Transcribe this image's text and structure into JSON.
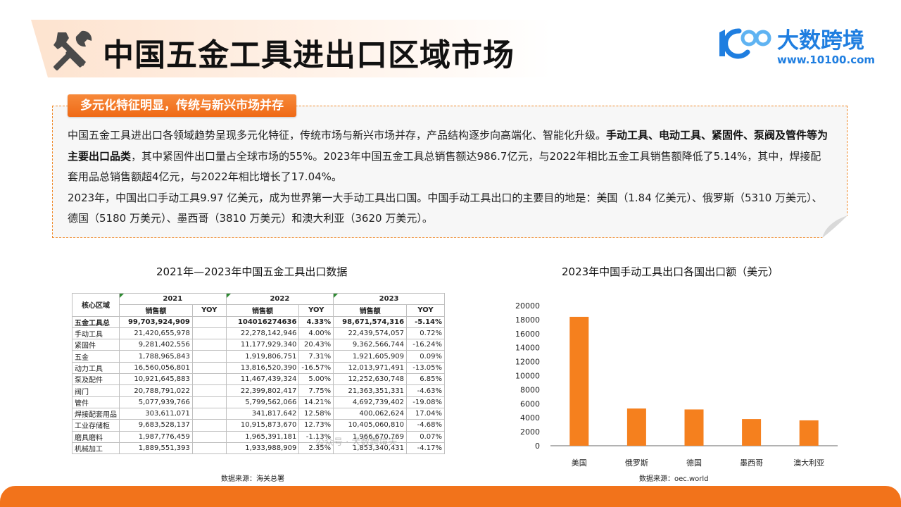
{
  "header": {
    "title": "中国五金工具进出口区域市场",
    "logo_name": "大数跨境",
    "logo_url": "www.10100.com"
  },
  "intro": {
    "tag": "多元化特征明显，传统与新兴市场并存",
    "p1_a": "中国五金工具进出口各领域趋势呈现多元化特征，传统市场与新兴市场并存，产品结构逐步向高端化、智能化升级。",
    "p1_bold": "手动工具、电动工具、紧固件、泵阀及管件等为主要出口品类",
    "p1_b": "，其中紧固件出口量占全球市场的55%。2023年中国五金工具总销售额达986.7亿元，与2022年相比五金工具销售额降低了5.14%，其中，焊接配套用品总销售额超4亿元，与2022年相比增长了17.04%。",
    "p2": "2023年，中国出口手动工具9.97 亿美元，成为世界第一大手动工具出口国。中国手动工具出口的主要目的地是：美国（1.84 亿美元）、俄罗斯（5310 万美元）、德国（5180 万美元）、墨西哥（3810 万美元）和澳大利亚（3620 万美元）。"
  },
  "table": {
    "title": "2021年—2023年中国五金工具出口数据",
    "region_header": "核心区域",
    "years": [
      "2021",
      "2022",
      "2023"
    ],
    "sub_sales": "销售额",
    "sub_yoy": "YOY",
    "rows": [
      {
        "name": "五金工具总",
        "v2021": "99,703,924,909",
        "y2021": "",
        "v2022": "104016274636",
        "y2022": "4.33%",
        "v2023": "98,671,574,316",
        "y2023": "-5.14%"
      },
      {
        "name": "手动工具",
        "v2021": "21,420,655,978",
        "y2021": "",
        "v2022": "22,278,142,946",
        "y2022": "4.00%",
        "v2023": "22,439,574,057",
        "y2023": "0.72%"
      },
      {
        "name": "紧固件",
        "v2021": "9,281,402,556",
        "y2021": "",
        "v2022": "11,177,929,340",
        "y2022": "20.43%",
        "v2023": "9,362,566,744",
        "y2023": "-16.24%"
      },
      {
        "name": "五金",
        "v2021": "1,788,965,843",
        "y2021": "",
        "v2022": "1,919,806,751",
        "y2022": "7.31%",
        "v2023": "1,921,605,909",
        "y2023": "0.09%"
      },
      {
        "name": "动力工具",
        "v2021": "16,560,056,801",
        "y2021": "",
        "v2022": "13,816,520,390",
        "y2022": "-16.57%",
        "v2023": "12,013,971,491",
        "y2023": "-13.05%"
      },
      {
        "name": "泵及配件",
        "v2021": "10,921,645,883",
        "y2021": "",
        "v2022": "11,467,439,324",
        "y2022": "5.00%",
        "v2023": "12,252,630,748",
        "y2023": "6.85%"
      },
      {
        "name": "阀门",
        "v2021": "20,788,791,022",
        "y2021": "",
        "v2022": "22,399,802,417",
        "y2022": "7.75%",
        "v2023": "21,363,351,331",
        "y2023": "-4.63%"
      },
      {
        "name": "管件",
        "v2021": "5,077,939,766",
        "y2021": "",
        "v2022": "5,799,562,066",
        "y2022": "14.21%",
        "v2023": "4,692,739,402",
        "y2023": "-19.08%"
      },
      {
        "name": "焊接配套用品",
        "v2021": "303,611,071",
        "y2021": "",
        "v2022": "341,817,642",
        "y2022": "12.58%",
        "v2023": "400,062,624",
        "y2023": "17.04%"
      },
      {
        "name": "工业存储柜",
        "v2021": "9,683,528,137",
        "y2021": "",
        "v2022": "10,915,873,670",
        "y2022": "12.73%",
        "v2023": "10,405,060,810",
        "y2023": "-4.68%"
      },
      {
        "name": "磨具磨料",
        "v2021": "1,987,776,459",
        "y2021": "",
        "v2022": "1,965,391,181",
        "y2022": "-1.13%",
        "v2023": "1,966,670,769",
        "y2023": "0.07%"
      },
      {
        "name": "机械加工",
        "v2021": "1,889,551,393",
        "y2021": "",
        "v2022": "1,933,988,909",
        "y2022": "2.35%",
        "v2023": "1,853,340,431",
        "y2023": "-4.17%"
      }
    ],
    "source": "数据来源：海关总署",
    "watermark": "公众号 · 大数跨境天"
  },
  "chart_data": {
    "type": "bar",
    "title": "2023年中国手动工具出口各国出口额（美元）",
    "categories": [
      "美国",
      "俄罗斯",
      "德国",
      "墨西哥",
      "澳大利亚"
    ],
    "values": [
      18400,
      5310,
      5180,
      3810,
      3620
    ],
    "ylim": [
      0,
      20000
    ],
    "yticks": [
      0,
      2000,
      4000,
      6000,
      8000,
      10000,
      12000,
      14000,
      16000,
      18000,
      20000
    ],
    "grid": false,
    "bar_color": "#f5801e",
    "source": "数据来源：oec.world"
  },
  "colors": {
    "accent": "#f2731b",
    "brand_blue": "#1f7ee0"
  }
}
